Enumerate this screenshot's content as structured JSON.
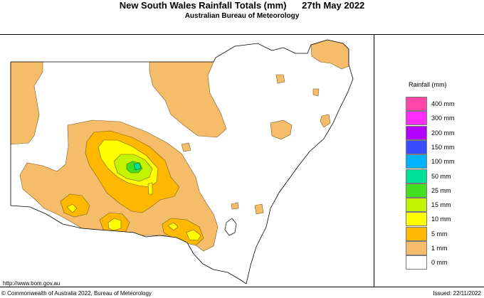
{
  "header": {
    "title": "New South Wales Rainfall Totals (mm)",
    "date": "27th May 2022",
    "subtitle": "Australian Bureau of Meteorology"
  },
  "legend": {
    "title": "Rainfall (mm)",
    "items": [
      {
        "label": "400 mm",
        "color": "#ff46a8"
      },
      {
        "label": "300 mm",
        "color": "#ff2cff"
      },
      {
        "label": "200 mm",
        "color": "#b400ff"
      },
      {
        "label": "150 mm",
        "color": "#3a4cff"
      },
      {
        "label": "100 mm",
        "color": "#00b4ff"
      },
      {
        "label": "50 mm",
        "color": "#00e096"
      },
      {
        "label": "25 mm",
        "color": "#44e020"
      },
      {
        "label": "15 mm",
        "color": "#c2f400"
      },
      {
        "label": "10 mm",
        "color": "#ffff00"
      },
      {
        "label": "5 mm",
        "color": "#ffb800"
      },
      {
        "label": "1 mm",
        "color": "#f5bd6a"
      },
      {
        "label": "0 mm",
        "color": "#ffffff"
      }
    ]
  },
  "footer": {
    "url": "http://www.bom.gov.au",
    "copyright": "© Commonwealth of Australia 2022, Bureau of Meteorology",
    "issued": "Issued: 22/11/2022"
  }
}
